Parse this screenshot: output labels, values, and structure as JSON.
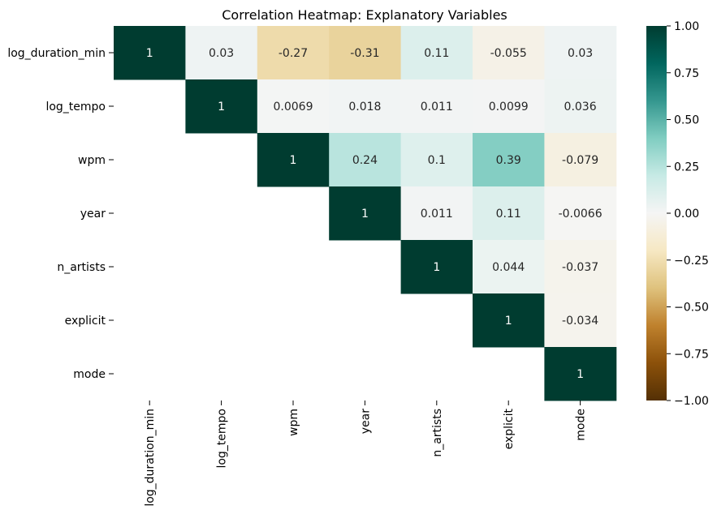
{
  "chart_data": {
    "type": "heatmap",
    "title": "Correlation Heatmap: Explanatory Variables",
    "row_labels": [
      "log_duration_min",
      "log_tempo",
      "wpm",
      "year",
      "n_artists",
      "explicit",
      "mode"
    ],
    "col_labels": [
      "log_duration_min",
      "log_tempo",
      "wpm",
      "year",
      "n_artists",
      "explicit",
      "mode"
    ],
    "values": [
      [
        1,
        0.03,
        -0.27,
        -0.31,
        0.11,
        -0.055,
        0.03
      ],
      [
        null,
        1,
        0.0069,
        0.018,
        0.011,
        0.0099,
        0.036
      ],
      [
        null,
        null,
        1,
        0.24,
        0.1,
        0.39,
        -0.079
      ],
      [
        null,
        null,
        null,
        1,
        0.011,
        0.11,
        -0.0066
      ],
      [
        null,
        null,
        null,
        null,
        1,
        0.044,
        -0.037
      ],
      [
        null,
        null,
        null,
        null,
        null,
        1,
        -0.034
      ],
      [
        null,
        null,
        null,
        null,
        null,
        null,
        1
      ]
    ],
    "cell_text": [
      [
        "1",
        "0.03",
        "-0.27",
        "-0.31",
        "0.11",
        "-0.055",
        "0.03"
      ],
      [
        "",
        "1",
        "0.0069",
        "0.018",
        "0.011",
        "0.0099",
        "0.036"
      ],
      [
        "",
        "",
        "1",
        "0.24",
        "0.1",
        "0.39",
        "-0.079"
      ],
      [
        "",
        "",
        "",
        "1",
        "0.011",
        "0.11",
        "-0.0066"
      ],
      [
        "",
        "",
        "",
        "",
        "1",
        "0.044",
        "-0.037"
      ],
      [
        "",
        "",
        "",
        "",
        "",
        "1",
        "-0.034"
      ],
      [
        "",
        "",
        "",
        "",
        "",
        "",
        "1"
      ]
    ],
    "colormap": "BrBG",
    "vmin": -1,
    "vmax": 1,
    "colorbar_ticks": [
      1.0,
      0.75,
      0.5,
      0.25,
      0.0,
      -0.25,
      -0.5,
      -0.75,
      -1.0
    ],
    "colorbar_tick_labels": [
      "1.00",
      "0.75",
      "0.50",
      "0.25",
      "0.00",
      "−0.25",
      "−0.50",
      "−0.75",
      "−1.00"
    ],
    "colormap_stops": [
      "#543005",
      "#8c510a",
      "#bf812d",
      "#dfc27d",
      "#f6e8c3",
      "#f5f5f5",
      "#c7eae5",
      "#80cdc1",
      "#35978f",
      "#01665e",
      "#003c30"
    ]
  }
}
